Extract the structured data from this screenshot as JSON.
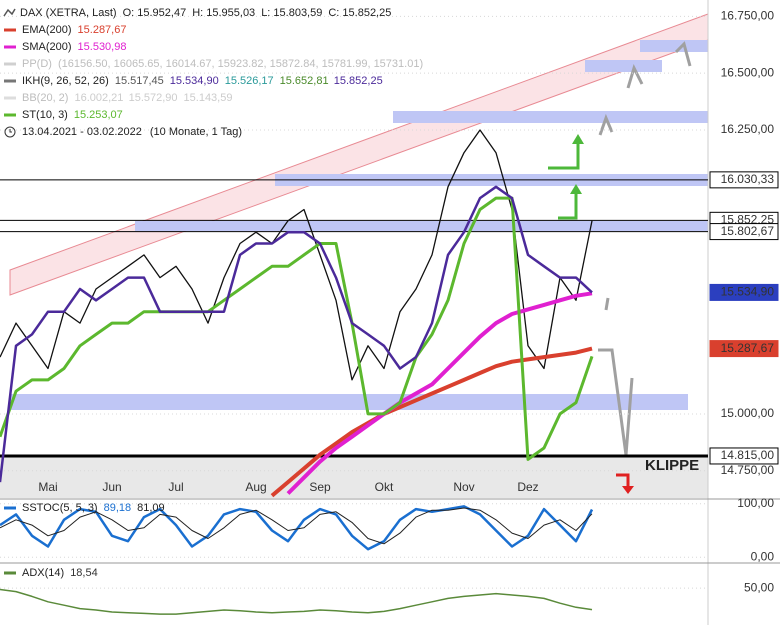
{
  "chart_data": [
    {
      "type": "line",
      "title": "DAX (XETRA, Last)",
      "ohlc": [
        "O: 15.952,47",
        "H: 15.955,03",
        "L: 15.803,59",
        "C: 15.852,25"
      ],
      "legend": [
        {
          "name": "EMA(200)",
          "labels": [
            "15.287,67"
          ],
          "colors": [
            "#d9402e"
          ],
          "color": "#d9402e"
        },
        {
          "name": "SMA(200)",
          "labels": [
            "15.530,98"
          ],
          "colors": [
            "#e020d0"
          ],
          "color": "#e020d0"
        },
        {
          "name": "PP(D)",
          "labels": [
            "(16156.50, 16065.65, 16014.67, 15923.82, 15872.84, 15781.99, 15731.01)"
          ],
          "colors": [
            "#bdbdbd"
          ],
          "color": "#d0d0d0",
          "faded": true
        },
        {
          "name": "IKH(9, 26, 52, 26)",
          "labels": [
            "15.517,45",
            "15.534,90",
            "15.526,17",
            "15.652,81",
            "15.852,25"
          ],
          "colors": [
            "#555555",
            "#4b2a9a",
            "#2a9a9a",
            "#4a8a2a",
            "#4b2a9a"
          ],
          "color": "#777777"
        },
        {
          "name": "BB(20, 2)",
          "labels": [
            "16.002,21",
            "15.572,90",
            "15.143,59"
          ],
          "colors": [
            "#cccccc",
            "#cccccc",
            "#cccccc"
          ],
          "color": "#dddddd",
          "faded": true
        },
        {
          "name": "ST(10, 3)",
          "labels": [
            "15.253,07"
          ],
          "colors": [
            "#5cb82e"
          ],
          "color": "#5cb82e"
        }
      ],
      "period": "13.04.2021 - 03.02.2022",
      "period_note": "(10 Monate, 1 Tag)",
      "categories": [
        null,
        null,
        null,
        "Mai",
        null,
        null,
        null,
        "Jun",
        null,
        null,
        null,
        "Jul",
        null,
        null,
        null,
        null,
        "Aug",
        null,
        null,
        null,
        "Sep",
        null,
        null,
        null,
        "Okt",
        null,
        null,
        null,
        null,
        "Nov",
        null,
        null,
        null,
        "Dez",
        null,
        null,
        null,
        null
      ],
      "series": [
        {
          "color": "#111111",
          "width": 1.3,
          "values": [
            15250,
            15400,
            15300,
            15200,
            15450,
            15400,
            15550,
            15600,
            15650,
            15700,
            15600,
            15650,
            15550,
            15400,
            15600,
            15750,
            15800,
            15750,
            15850,
            15900,
            15700,
            15500,
            15150,
            15300,
            15200,
            15450,
            15550,
            15700,
            16000,
            16150,
            16250,
            16150,
            15900,
            15300,
            15200,
            15600,
            15500,
            15850
          ]
        },
        {
          "color": "#d9402e",
          "width": 4,
          "values": [
            null,
            null,
            null,
            null,
            null,
            null,
            null,
            null,
            null,
            null,
            null,
            null,
            null,
            null,
            null,
            null,
            null,
            14640,
            14700,
            14760,
            14820,
            14870,
            14920,
            14960,
            15000,
            15030,
            15060,
            15090,
            15120,
            15150,
            15180,
            15210,
            15230,
            15240,
            15250,
            15260,
            15270,
            15287.67
          ]
        },
        {
          "color": "#e020d0",
          "width": 4,
          "values": [
            null,
            null,
            null,
            null,
            null,
            null,
            null,
            null,
            null,
            null,
            null,
            null,
            null,
            null,
            null,
            null,
            null,
            null,
            14650,
            14720,
            14790,
            14850,
            14900,
            14950,
            15000,
            15050,
            15090,
            15130,
            15200,
            15270,
            15340,
            15400,
            15440,
            15460,
            15480,
            15500,
            15520,
            15530.98
          ]
        },
        {
          "color": "#5cb82e",
          "width": 3,
          "values": [
            14900,
            15100,
            15150,
            15150,
            15200,
            15300,
            15350,
            15400,
            15400,
            15450,
            15450,
            15450,
            15450,
            15450,
            15500,
            15550,
            15600,
            15650,
            15650,
            15700,
            15750,
            15750,
            15400,
            15000,
            15000,
            15050,
            15250,
            15350,
            15500,
            15750,
            15900,
            15950,
            15950,
            14800,
            14850,
            15000,
            15050,
            15253.07
          ]
        },
        {
          "color": "#4b2a9a",
          "width": 2.5,
          "values": [
            14700,
            15300,
            15350,
            15450,
            15450,
            15550,
            15500,
            15550,
            15600,
            15600,
            15450,
            15450,
            15450,
            15450,
            15450,
            15700,
            15750,
            15750,
            15800,
            15800,
            15750,
            15600,
            15400,
            15350,
            15300,
            15200,
            15250,
            15400,
            15700,
            15800,
            15950,
            16000,
            15950,
            15700,
            15650,
            15600,
            15600,
            15534.9
          ]
        }
      ],
      "ylim": [
        14630,
        16800
      ],
      "yticks": [
        {
          "value": 14750,
          "label": "14.750,00"
        },
        {
          "value": 15000,
          "label": "15.000,00"
        },
        {
          "value": 16250,
          "label": "16.250,00"
        },
        {
          "value": 16500,
          "label": "16.500,00"
        },
        {
          "value": 16750,
          "label": "16.750,00"
        }
      ],
      "levels": [
        {
          "value": 16030.33,
          "label": "16.030,33",
          "color": "#ffffff",
          "text_color": "#000000",
          "line_width": 1
        },
        {
          "value": 15852.25,
          "label": "15.852,25",
          "color": "#ffffff",
          "text_color": "#000000",
          "line_width": 1
        },
        {
          "value": 15802.67,
          "label": "15.802,67",
          "color": "#ffffff",
          "text_color": "#000000",
          "line_width": 1
        },
        {
          "value": 15534.9,
          "label": "15.534,90",
          "color": "#2b3fbf",
          "text_color": "#ffffff",
          "line_width": 0
        },
        {
          "value": 15287.67,
          "label": "15.287,67",
          "color": "#d9402e",
          "text_color": "#ffffff",
          "line_width": 0
        },
        {
          "value": 14815,
          "label": "14.815,00",
          "color": "#ffffff",
          "text_color": "#000000",
          "line_width": 3
        }
      ],
      "annotation": "KLIPPE",
      "grid": true
    },
    {
      "type": "line",
      "legend": [
        {
          "name": "SSTOC(5, 5, 3)",
          "labels": [
            "89,18",
            "81,09"
          ],
          "colors": [
            "#1a6fd0",
            "#222222"
          ],
          "color": "#1a6fd0"
        }
      ],
      "series": [
        {
          "color": "#1a6fd0",
          "width": 2.5,
          "values": [
            60,
            80,
            40,
            20,
            70,
            90,
            85,
            40,
            30,
            75,
            90,
            60,
            20,
            40,
            80,
            90,
            85,
            50,
            30,
            70,
            90,
            80,
            40,
            15,
            30,
            70,
            90,
            85,
            90,
            95,
            80,
            50,
            20,
            40,
            90,
            60,
            30,
            89.18
          ]
        },
        {
          "color": "#222222",
          "width": 1,
          "values": [
            55,
            70,
            60,
            40,
            50,
            75,
            85,
            70,
            50,
            55,
            80,
            75,
            50,
            35,
            55,
            80,
            88,
            70,
            50,
            55,
            80,
            85,
            65,
            35,
            25,
            45,
            75,
            88,
            88,
            92,
            88,
            70,
            45,
            35,
            60,
            70,
            50,
            81.09
          ]
        }
      ],
      "ylim": [
        -9,
        107
      ],
      "yticks": [
        {
          "value": 100,
          "label": "100,00"
        },
        {
          "value": 0,
          "label": "0,00"
        }
      ],
      "grid": true
    },
    {
      "type": "line",
      "legend": [
        {
          "name": "ADX(14)",
          "labels": [
            "18,54"
          ],
          "colors": [
            "#333333"
          ],
          "color": "#5a8a3a"
        }
      ],
      "series": [
        {
          "color": "#5a8a3a",
          "width": 1.5,
          "values": [
            48,
            45,
            38,
            30,
            25,
            20,
            18,
            15,
            14,
            13,
            12,
            12,
            14,
            16,
            18,
            17,
            15,
            14,
            15,
            16,
            18,
            17,
            15,
            14,
            16,
            20,
            25,
            30,
            35,
            38,
            40,
            42,
            40,
            38,
            35,
            28,
            22,
            18.54
          ]
        }
      ],
      "ylim": [
        -4,
        84
      ],
      "yticks": [
        {
          "value": 50,
          "label": "50,00"
        }
      ],
      "grid": true
    }
  ]
}
